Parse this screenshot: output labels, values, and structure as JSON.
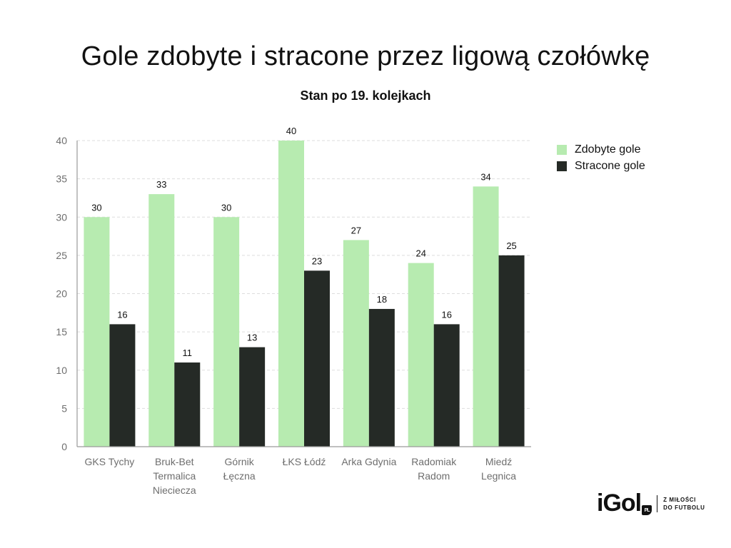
{
  "title": "Gole zdobyte i stracone przez ligową czołówkę",
  "subtitle": "Stan po 19. kolejkach",
  "colors": {
    "scored": "#b7ebb0",
    "conceded": "#252a26",
    "grid": "#dddddd",
    "axis": "#9a9a9a"
  },
  "chart_data": {
    "type": "bar",
    "categories": [
      [
        "GKS Tychy"
      ],
      [
        "Bruk-Bet",
        "Termalica",
        "Nieciecza"
      ],
      [
        "Górnik",
        "Łęczna"
      ],
      [
        "ŁKS Łódź"
      ],
      [
        "Arka Gdynia"
      ],
      [
        "Radomiak",
        "Radom"
      ],
      [
        "Miedź",
        "Legnica"
      ]
    ],
    "series": [
      {
        "name": "Zdobyte gole",
        "values": [
          30,
          33,
          30,
          40,
          27,
          24,
          34
        ]
      },
      {
        "name": "Stracone gole",
        "values": [
          16,
          11,
          13,
          23,
          18,
          16,
          25
        ]
      }
    ],
    "ylim": [
      0,
      40
    ],
    "yticks": [
      0,
      5,
      10,
      15,
      20,
      25,
      30,
      35,
      40
    ],
    "grid": true,
    "legend_position": "top-right"
  },
  "legend": {
    "items": [
      "Zdobyte gole",
      "Stracone gole"
    ]
  },
  "logo": {
    "text": "iGol",
    "badge": "PL",
    "tagline_line1": "Z MIŁOŚCI",
    "tagline_line2": "DO FUTBOLU"
  }
}
